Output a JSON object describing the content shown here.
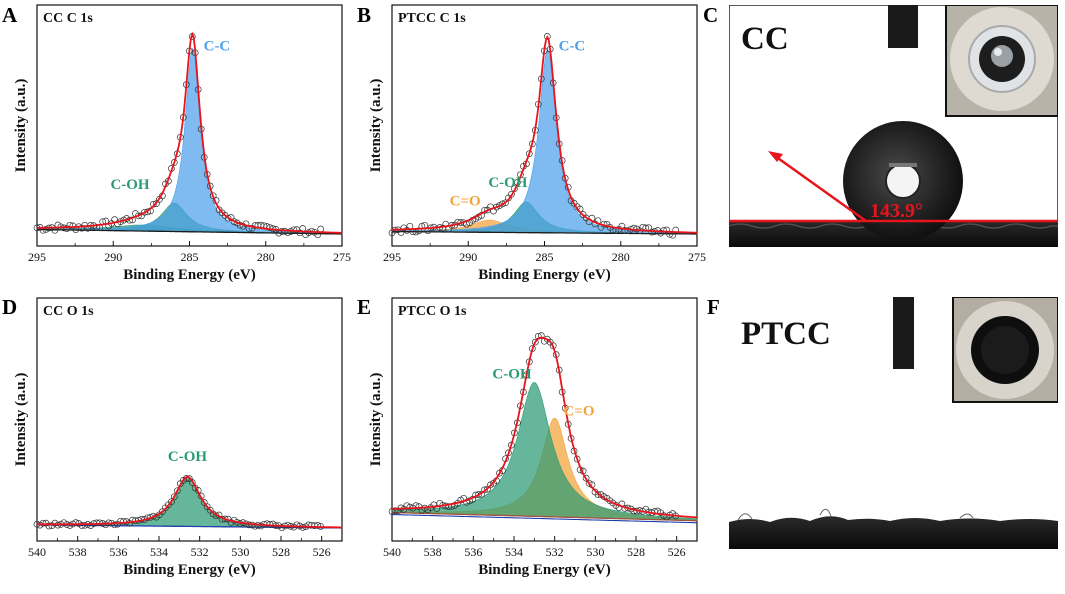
{
  "colors": {
    "fit": "#e8141c",
    "cc_blue": "#4ea1ea",
    "coh_green": "#2a9a73",
    "co_orange": "#f2a33a",
    "baseline": "#1a1a1a",
    "baseline_blue": "#1f3fae",
    "baseline_brown": "#a0523c",
    "angle_red": "#e8141c"
  },
  "chart_data": [
    {
      "id": "A",
      "panel_label": "A",
      "title": "CC C 1s",
      "type": "line",
      "xlabel": "Binding Energy (eV)",
      "ylabel": "Intensity (a.u.)",
      "xlim": [
        295,
        275
      ],
      "xticks": [
        295,
        290,
        285,
        280,
        275
      ],
      "ylim": [
        0,
        100
      ],
      "background": {
        "start": 2.2,
        "end": 0.0
      },
      "peaks": [
        {
          "name": "C-C",
          "center": 284.8,
          "height": 90,
          "width": 0.6,
          "color": "cc_blue"
        },
        {
          "name": "C-OH",
          "center": 286.0,
          "height": 14,
          "width": 1.0,
          "color": "coh_green"
        },
        {
          "name": "broad",
          "center": 288.0,
          "height": 3,
          "width": 2.5,
          "color": "coh_green"
        }
      ],
      "labels": [
        {
          "text": "C-C",
          "x": 283.2,
          "y": 90,
          "color": "cc_blue"
        },
        {
          "text": "C-OH",
          "x": 288.9,
          "y": 22,
          "color": "coh_green"
        }
      ],
      "noise": 1.6
    },
    {
      "id": "B",
      "panel_label": "B",
      "title": "PTCC C 1s",
      "type": "line",
      "xlabel": "Binding Energy (eV)",
      "ylabel": "Intensity (a.u.)",
      "xlim": [
        295,
        275
      ],
      "xticks": [
        295,
        290,
        285,
        280,
        275
      ],
      "ylim": [
        0,
        100
      ],
      "background": {
        "start": 1.2,
        "end": 0.0
      },
      "peaks": [
        {
          "name": "C-C",
          "center": 284.8,
          "height": 90,
          "width": 0.7,
          "color": "cc_blue"
        },
        {
          "name": "C-OH",
          "center": 286.2,
          "height": 15,
          "width": 1.0,
          "color": "coh_green"
        },
        {
          "name": "C=O",
          "center": 288.6,
          "height": 6,
          "width": 1.5,
          "color": "co_orange"
        }
      ],
      "labels": [
        {
          "text": "C-C",
          "x": 283.2,
          "y": 90,
          "color": "cc_blue"
        },
        {
          "text": "C-OH",
          "x": 287.4,
          "y": 23,
          "color": "coh_green"
        },
        {
          "text": "C=O",
          "x": 290.2,
          "y": 14,
          "color": "co_orange"
        }
      ],
      "noise": 1.6
    },
    {
      "id": "D",
      "panel_label": "D",
      "title": "CC O 1s",
      "type": "line",
      "xlabel": "Binding Energy (eV)",
      "ylabel": "Intensity (a.u.)",
      "xlim": [
        540,
        525
      ],
      "xticks": [
        540,
        538,
        536,
        534,
        532,
        530,
        528,
        526
      ],
      "ylim": [
        0,
        100
      ],
      "background": {
        "start": 2.0,
        "end": 0.5
      },
      "peaks": [
        {
          "name": "C-OH",
          "center": 532.6,
          "height": 24,
          "width": 0.8,
          "color": "coh_green"
        }
      ],
      "labels": [
        {
          "text": "C-OH",
          "x": 532.6,
          "y": 33,
          "color": "coh_green"
        }
      ],
      "noise": 0.9
    },
    {
      "id": "E",
      "panel_label": "E",
      "title": "PTCC O 1s",
      "type": "line",
      "xlabel": "Binding Energy (eV)",
      "ylabel": "Intensity (a.u.)",
      "xlim": [
        540,
        525
      ],
      "xticks": [
        540,
        538,
        536,
        534,
        532,
        530,
        528,
        526
      ],
      "ylim": [
        0,
        100
      ],
      "background": {
        "start": 8.0,
        "end": 4.0
      },
      "peaks": [
        {
          "name": "C-OH",
          "center": 533.0,
          "height": 65,
          "width": 1.0,
          "color": "coh_green"
        },
        {
          "name": "C=O",
          "center": 532.0,
          "height": 48,
          "width": 0.8,
          "color": "co_orange"
        }
      ],
      "labels": [
        {
          "text": "C-OH",
          "x": 534.1,
          "y": 73,
          "color": "coh_green"
        },
        {
          "text": "C=O",
          "x": 530.8,
          "y": 55,
          "color": "co_orange"
        }
      ],
      "noise": 1.4
    }
  ],
  "photos": {
    "C": {
      "panel_label": "C",
      "title": "CC",
      "angle": "143.9°"
    },
    "F": {
      "panel_label": "F",
      "title": "PTCC"
    }
  }
}
